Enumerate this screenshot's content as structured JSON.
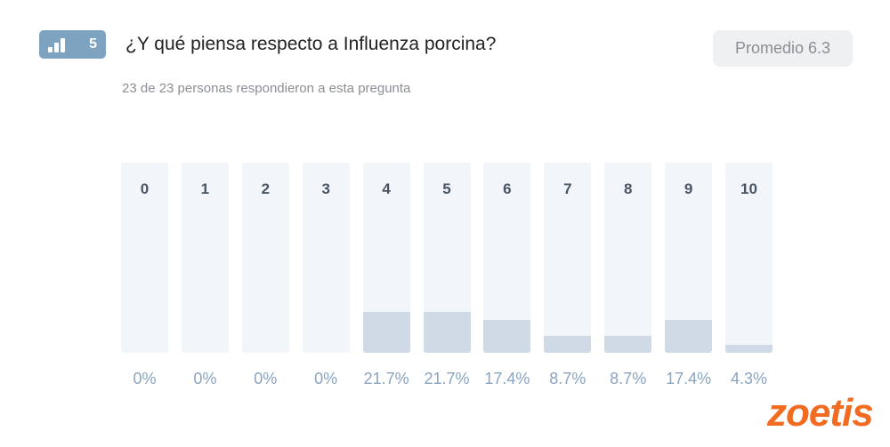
{
  "question_number": "5",
  "title": "¿Y qué piensa respecto a Influenza porcina?",
  "subtitle": "23 de 23 personas respondieron a esta pregunta",
  "average_label": "Promedio 6.3",
  "logo": "zoetis",
  "colors": {
    "track": "#f2f5fa",
    "fill": "#d0dae6",
    "badge": "#7ea3c0",
    "logo": "#f26b21"
  },
  "chart_data": {
    "type": "bar",
    "categories": [
      "0",
      "1",
      "2",
      "3",
      "4",
      "5",
      "6",
      "7",
      "8",
      "9",
      "10"
    ],
    "values": [
      0,
      0,
      0,
      0,
      21.7,
      21.7,
      17.4,
      8.7,
      8.7,
      17.4,
      4.3
    ],
    "labels": [
      "0%",
      "0%",
      "0%",
      "0%",
      "21.7%",
      "21.7%",
      "17.4%",
      "8.7%",
      "8.7%",
      "17.4%",
      "4.3%"
    ],
    "ylim": [
      0,
      100
    ],
    "title": "¿Y qué piensa respecto a Influenza porcina?"
  }
}
